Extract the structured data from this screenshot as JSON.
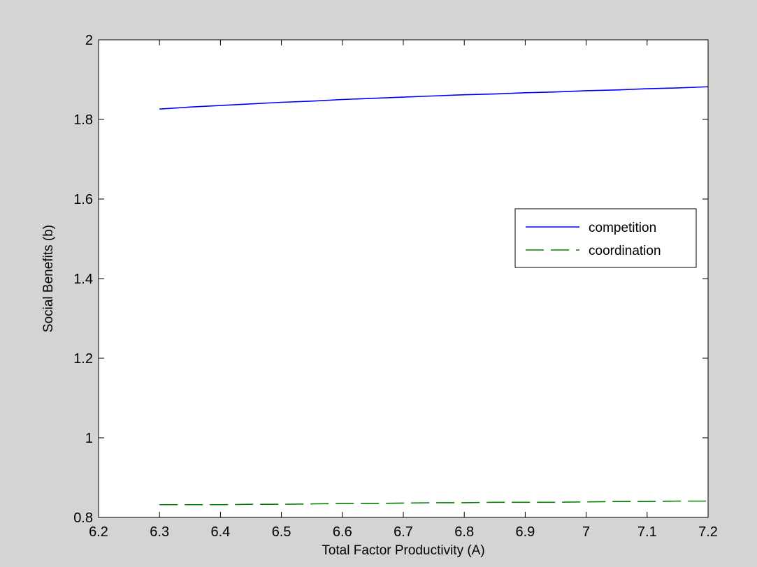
{
  "chart_data": {
    "type": "line",
    "title": "",
    "xlabel": "Total Factor Productivity (A)",
    "ylabel": "Social Benefits (b)",
    "xlim": [
      6.2,
      7.2
    ],
    "ylim": [
      0.8,
      2.0
    ],
    "xticks": [
      "6.2",
      "6.3",
      "6.4",
      "6.5",
      "6.6",
      "6.7",
      "6.8",
      "6.9",
      "7",
      "7.1",
      "7.2"
    ],
    "yticks": [
      "0.8",
      "1",
      "1.2",
      "1.4",
      "1.6",
      "1.8",
      "2"
    ],
    "grid": false,
    "legend_position": "right",
    "series": [
      {
        "name": "competition",
        "color": "#0000ff",
        "style": "solid",
        "x": [
          6.3,
          6.35,
          6.4,
          6.45,
          6.5,
          6.55,
          6.6,
          6.65,
          6.7,
          6.75,
          6.8,
          6.85,
          6.9,
          6.95,
          7.0,
          7.05,
          7.1,
          7.15,
          7.2
        ],
        "y": [
          1.826,
          1.831,
          1.835,
          1.839,
          1.843,
          1.846,
          1.85,
          1.853,
          1.856,
          1.859,
          1.862,
          1.864,
          1.867,
          1.869,
          1.872,
          1.874,
          1.877,
          1.879,
          1.882
        ]
      },
      {
        "name": "coordination",
        "color": "#008000",
        "style": "dashed",
        "x": [
          6.3,
          6.35,
          6.4,
          6.45,
          6.5,
          6.55,
          6.6,
          6.65,
          6.7,
          6.75,
          6.8,
          6.85,
          6.9,
          6.95,
          7.0,
          7.05,
          7.1,
          7.15,
          7.2
        ],
        "y": [
          0.832,
          0.832,
          0.832,
          0.833,
          0.833,
          0.834,
          0.835,
          0.835,
          0.836,
          0.837,
          0.837,
          0.838,
          0.838,
          0.838,
          0.839,
          0.84,
          0.84,
          0.841,
          0.841
        ]
      }
    ]
  }
}
